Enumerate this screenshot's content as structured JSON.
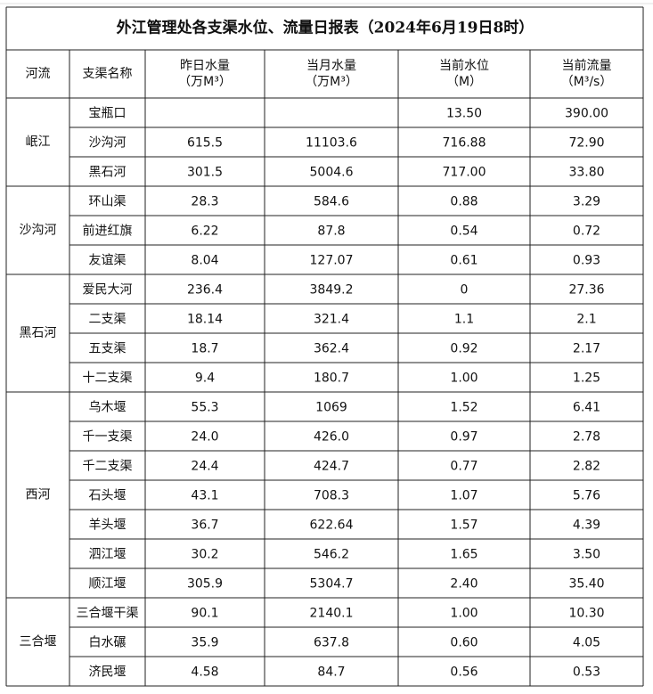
{
  "title": "外江管理处各支渠水位、流量日报表（2024年6月19日8时）",
  "header": [
    [
      "河流"
    ],
    [
      "支渠名称"
    ],
    [
      "昨日水量",
      "（万M³）"
    ],
    [
      "当月水量",
      "（万M³）"
    ],
    [
      "当前水位",
      "（M）"
    ],
    [
      "当前流量",
      "（M³/s）"
    ]
  ],
  "groups": [
    {
      "river": "岷江",
      "rows": [
        [
          "宝瓶口",
          null,
          null,
          "13.50",
          "390.00"
        ],
        [
          "沙沟河",
          "615.5",
          "11103.6",
          "716.88",
          "72.90"
        ],
        [
          "黑石河",
          "301.5",
          "5004.6",
          "717.00",
          "33.80"
        ]
      ]
    },
    {
      "river": "沙沟河",
      "rows": [
        [
          "环山渠",
          "28.3",
          "584.6",
          "0.88",
          "3.29"
        ],
        [
          "前进红旗",
          "6.22",
          "87.8",
          "0.54",
          "0.72"
        ],
        [
          "友谊渠",
          "8.04",
          "127.07",
          "0.61",
          "0.93"
        ]
      ]
    },
    {
      "river": "黑石河",
      "rows": [
        [
          "爱民大河",
          "236.4",
          "3849.2",
          "0",
          "27.36"
        ],
        [
          "二支渠",
          "18.14",
          "321.4",
          "1.1",
          "2.1"
        ],
        [
          "五支渠",
          "18.7",
          "362.4",
          "0.92",
          "2.17"
        ],
        [
          "十二支渠",
          "9.4",
          "180.7",
          "1.00",
          "1.25"
        ]
      ]
    },
    {
      "river": "西河",
      "rows": [
        [
          "乌木堰",
          "55.3",
          "1069",
          "1.52",
          "6.41"
        ],
        [
          "千一支渠",
          "24.0",
          "426.0",
          "0.97",
          "2.78"
        ],
        [
          "千二支渠",
          "24.4",
          "424.7",
          "0.77",
          "2.82"
        ],
        [
          "石头堰",
          "43.1",
          "708.3",
          "1.07",
          "5.76"
        ],
        [
          "羊头堰",
          "36.7",
          "622.64",
          "1.57",
          "4.39"
        ],
        [
          "泗江堰",
          "30.2",
          "546.2",
          "1.65",
          "3.50"
        ],
        [
          "顺江堰",
          "305.9",
          "5304.7",
          "2.40",
          "35.40"
        ]
      ]
    },
    {
      "river": "三合堰",
      "rows": [
        [
          "三合堰干渠",
          "90.1",
          "2140.1",
          "1.00",
          "10.30"
        ],
        [
          "白水碾",
          "35.9",
          "637.8",
          "0.60",
          "4.05"
        ],
        [
          "济民堰",
          "4.58",
          "84.7",
          "0.56",
          "0.53"
        ]
      ]
    }
  ]
}
